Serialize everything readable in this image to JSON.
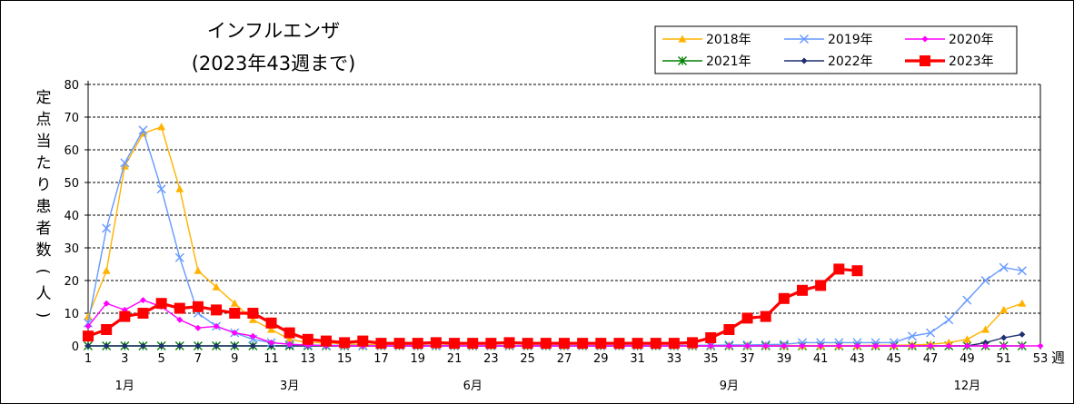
{
  "chart_data": {
    "type": "line",
    "title": "インフルエンザ",
    "subtitle": "(2023年43週まで)",
    "ylabel": "定点当たり患者数(人)",
    "xlabel_unit": "週",
    "ylim": [
      0,
      80
    ],
    "yticks": [
      0,
      10,
      20,
      30,
      40,
      50,
      60,
      70,
      80
    ],
    "xlim": [
      1,
      53
    ],
    "xticks": [
      1,
      3,
      5,
      7,
      9,
      11,
      13,
      15,
      17,
      19,
      21,
      23,
      25,
      27,
      29,
      31,
      33,
      35,
      37,
      39,
      41,
      43,
      45,
      47,
      49,
      51,
      53
    ],
    "month_labels": [
      {
        "week": 3,
        "label": "1月"
      },
      {
        "week": 12,
        "label": "3月"
      },
      {
        "week": 22,
        "label": "6月"
      },
      {
        "week": 36,
        "label": "9月"
      },
      {
        "week": 49,
        "label": "12月"
      }
    ],
    "grid": "horizontal-dashed",
    "legend_position": "top-right",
    "series": [
      {
        "name": "2018年",
        "color": "#FFB300",
        "marker": "triangle",
        "x": [
          1,
          2,
          3,
          4,
          5,
          6,
          7,
          8,
          9,
          10,
          11,
          12,
          13,
          14,
          15,
          16,
          17,
          18,
          19,
          20,
          21,
          22,
          23,
          24,
          25,
          26,
          27,
          28,
          29,
          30,
          31,
          32,
          33,
          34,
          35,
          36,
          37,
          38,
          39,
          40,
          41,
          42,
          43,
          44,
          45,
          46,
          47,
          48,
          49,
          50,
          51,
          52
        ],
        "y": [
          9,
          23,
          55,
          65,
          67,
          48,
          23,
          18,
          13,
          8,
          5,
          2,
          1,
          1,
          0.5,
          0.5,
          0.3,
          0.3,
          0.2,
          0.2,
          0.2,
          0.1,
          0.1,
          0.1,
          0.1,
          0.1,
          0.1,
          0.1,
          0.1,
          0.1,
          0.1,
          0.1,
          0.1,
          0.1,
          0.1,
          0.1,
          0.1,
          0.1,
          0.1,
          0.1,
          0.1,
          0.1,
          0.1,
          0.2,
          0.2,
          0.3,
          0.5,
          1,
          2,
          5,
          11,
          13
        ]
      },
      {
        "name": "2019年",
        "color": "#6699FF",
        "marker": "x",
        "x": [
          1,
          2,
          3,
          4,
          5,
          6,
          7,
          8,
          9,
          10,
          11,
          12,
          13,
          14,
          15,
          16,
          17,
          18,
          19,
          20,
          21,
          22,
          23,
          24,
          25,
          26,
          27,
          28,
          29,
          30,
          31,
          32,
          33,
          34,
          35,
          36,
          37,
          38,
          39,
          40,
          41,
          42,
          43,
          44,
          45,
          46,
          47,
          48,
          49,
          50,
          51,
          52
        ],
        "y": [
          7,
          36,
          56,
          66,
          48,
          27,
          10,
          6,
          4,
          2,
          1,
          0.5,
          0.3,
          0.2,
          0.2,
          0.1,
          0.1,
          0.1,
          0.1,
          0.1,
          0.1,
          0.1,
          0.1,
          0.1,
          0.1,
          0.1,
          0.1,
          0.1,
          0.1,
          0.1,
          0.1,
          0.1,
          0.1,
          0.2,
          0.2,
          0.3,
          0.3,
          0.4,
          0.5,
          1,
          1,
          1,
          1,
          1,
          1,
          3,
          4,
          8,
          14,
          20,
          24,
          23
        ]
      },
      {
        "name": "2020年",
        "color": "#FF00FF",
        "marker": "diamond",
        "x": [
          1,
          2,
          3,
          4,
          5,
          6,
          7,
          8,
          9,
          10,
          11,
          12,
          13,
          14,
          15,
          16,
          17,
          18,
          19,
          20,
          21,
          22,
          23,
          24,
          25,
          26,
          27,
          28,
          29,
          30,
          31,
          32,
          33,
          34,
          35,
          36,
          37,
          38,
          39,
          40,
          41,
          42,
          43,
          44,
          45,
          46,
          47,
          48,
          49,
          50,
          51,
          52,
          53
        ],
        "y": [
          6,
          13,
          11,
          14,
          12,
          8,
          5.5,
          6,
          4,
          3,
          1,
          0.5,
          0.2,
          0.1,
          0,
          0,
          0,
          0,
          0,
          0,
          0,
          0,
          0,
          0,
          0,
          0,
          0,
          0,
          0,
          0,
          0,
          0,
          0,
          0,
          0,
          0,
          0,
          0,
          0,
          0,
          0,
          0,
          0,
          0,
          0,
          0,
          0,
          0,
          0,
          0,
          0,
          0,
          0
        ]
      },
      {
        "name": "2021年",
        "color": "#008000",
        "marker": "star",
        "x": [
          1,
          2,
          3,
          4,
          5,
          6,
          7,
          8,
          9,
          10,
          11,
          12,
          13,
          14,
          15,
          16,
          17,
          18,
          19,
          20,
          21,
          22,
          23,
          24,
          25,
          26,
          27,
          28,
          29,
          30,
          31,
          32,
          33,
          34,
          35,
          36,
          37,
          38,
          39,
          40,
          41,
          42,
          43,
          44,
          45,
          46,
          47,
          48,
          49,
          50,
          51,
          52
        ],
        "y": [
          0,
          0,
          0,
          0,
          0,
          0,
          0,
          0,
          0,
          0,
          0,
          0,
          0,
          0,
          0,
          0,
          0,
          0,
          0,
          0,
          0,
          0,
          0,
          0,
          0,
          0,
          0,
          0,
          0,
          0,
          0,
          0,
          0,
          0,
          0,
          0,
          0,
          0,
          0,
          0,
          0,
          0,
          0,
          0,
          0,
          0,
          0,
          0,
          0,
          0,
          0,
          0
        ]
      },
      {
        "name": "2022年",
        "color": "#1F2F6F",
        "marker": "diamond",
        "x": [
          1,
          2,
          3,
          4,
          5,
          6,
          7,
          8,
          9,
          10,
          11,
          12,
          13,
          14,
          15,
          16,
          17,
          18,
          19,
          20,
          21,
          22,
          23,
          24,
          25,
          26,
          27,
          28,
          29,
          30,
          31,
          32,
          33,
          34,
          35,
          36,
          37,
          38,
          39,
          40,
          41,
          42,
          43,
          44,
          45,
          46,
          47,
          48,
          49,
          50,
          51,
          52
        ],
        "y": [
          0,
          0,
          0,
          0,
          0,
          0,
          0,
          0,
          0,
          0,
          0,
          0,
          0,
          0,
          0,
          0,
          0,
          0,
          0,
          0,
          0,
          0,
          0,
          0,
          0,
          0,
          0,
          0,
          0,
          0,
          0,
          0,
          0,
          0,
          0,
          0,
          0,
          0,
          0,
          0,
          0,
          0,
          0,
          0,
          0,
          0,
          0,
          0,
          0,
          1,
          2.5,
          3.5
        ]
      },
      {
        "name": "2023年",
        "color": "#FF0000",
        "marker": "square",
        "x": [
          1,
          2,
          3,
          4,
          5,
          6,
          7,
          8,
          9,
          10,
          11,
          12,
          13,
          14,
          15,
          16,
          17,
          18,
          19,
          20,
          21,
          22,
          23,
          24,
          25,
          26,
          27,
          28,
          29,
          30,
          31,
          32,
          33,
          34,
          35,
          36,
          37,
          38,
          39,
          40,
          41,
          42,
          43
        ],
        "y": [
          3,
          5,
          9,
          10,
          13,
          11.5,
          12,
          11,
          10,
          10,
          7,
          4,
          2,
          1.5,
          1,
          1.5,
          0.8,
          0.8,
          0.8,
          1,
          0.8,
          0.8,
          0.8,
          1,
          0.8,
          0.8,
          0.8,
          0.8,
          0.8,
          0.8,
          0.8,
          0.8,
          0.8,
          1,
          2.5,
          5,
          8.5,
          9,
          14.5,
          17,
          18.5,
          23.5,
          23
        ]
      }
    ]
  }
}
